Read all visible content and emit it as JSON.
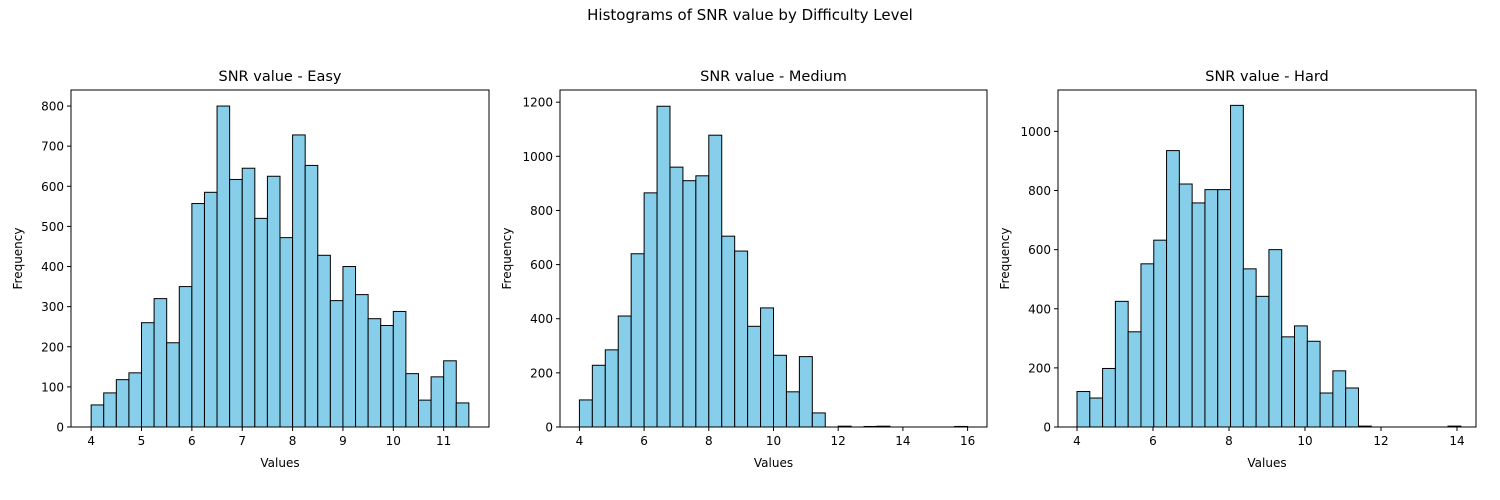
{
  "figure": {
    "suptitle": "Histograms of SNR value by Difficulty Level"
  },
  "chart_data": [
    {
      "type": "bar",
      "title": "SNR value - Easy",
      "xlabel": "Values",
      "ylabel": "Frequency",
      "xlim": [
        3.6,
        11.9
      ],
      "ylim": [
        0,
        840
      ],
      "xticks": [
        4,
        5,
        6,
        7,
        8,
        9,
        10,
        11
      ],
      "yticks": [
        0,
        100,
        200,
        300,
        400,
        500,
        600,
        700,
        800
      ],
      "bin_start": 4.0,
      "bin_width": 0.25,
      "values": [
        55,
        85,
        118,
        135,
        260,
        320,
        210,
        350,
        557,
        585,
        800,
        617,
        645,
        520,
        625,
        472,
        728,
        652,
        428,
        315,
        400,
        330,
        270,
        253,
        288,
        133,
        67,
        125,
        165,
        60
      ],
      "bar_color": "#87ceeb",
      "edge_color": "#000000"
    },
    {
      "type": "bar",
      "title": "SNR value - Medium",
      "xlabel": "Values",
      "ylabel": "Frequency",
      "xlim": [
        3.4,
        16.6
      ],
      "ylim": [
        0,
        1245
      ],
      "xticks": [
        4,
        6,
        8,
        10,
        12,
        14,
        16
      ],
      "yticks": [
        0,
        200,
        400,
        600,
        800,
        1000,
        1200
      ],
      "bin_start": 4.0,
      "bin_width": 0.4,
      "values": [
        100,
        228,
        285,
        410,
        640,
        865,
        1185,
        960,
        910,
        928,
        1078,
        705,
        650,
        372,
        440,
        265,
        130,
        260,
        52,
        0,
        3,
        0,
        2,
        3,
        0,
        0,
        0,
        0,
        0,
        2
      ],
      "bar_color": "#87ceeb",
      "edge_color": "#000000"
    },
    {
      "type": "bar",
      "title": "SNR value - Hard",
      "xlabel": "Values",
      "ylabel": "Frequency",
      "xlim": [
        3.5,
        14.5
      ],
      "ylim": [
        0,
        1140
      ],
      "xticks": [
        4,
        6,
        8,
        10,
        12,
        14
      ],
      "yticks": [
        0,
        200,
        400,
        600,
        800,
        1000
      ],
      "bin_start": 4.0,
      "bin_width": 0.3367,
      "values": [
        120,
        98,
        198,
        425,
        322,
        552,
        632,
        935,
        822,
        758,
        803,
        803,
        1088,
        535,
        442,
        600,
        305,
        342,
        290,
        115,
        190,
        132,
        3,
        0,
        0,
        0,
        0,
        0,
        0,
        3
      ],
      "bar_color": "#87ceeb",
      "edge_color": "#000000"
    }
  ]
}
